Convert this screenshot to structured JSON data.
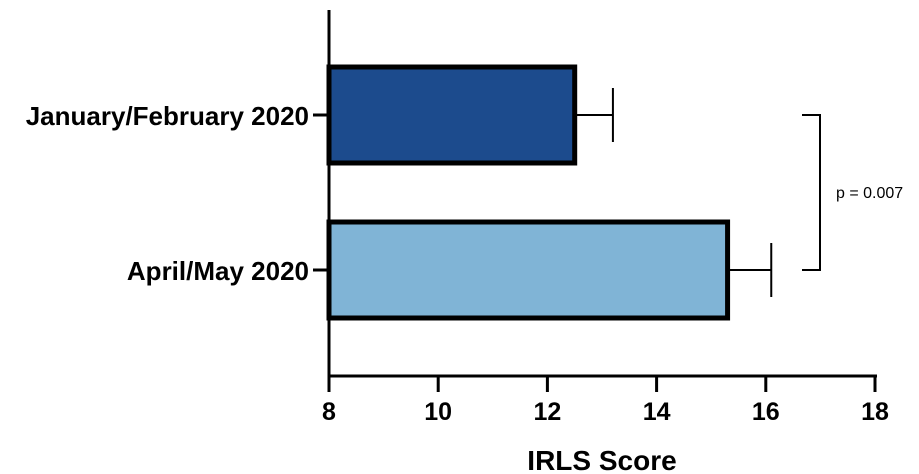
{
  "chart_data": {
    "type": "bar",
    "orientation": "horizontal",
    "categories": [
      "January/February 2020",
      "April/May 2020"
    ],
    "values": [
      12.5,
      15.3
    ],
    "error_upper": [
      13.2,
      16.1
    ],
    "colors": [
      "#1c4b8d",
      "#80b4d6"
    ],
    "xlabel": "IRLS Score",
    "xlim": [
      8,
      18
    ],
    "xticks": [
      8,
      10,
      12,
      14,
      16,
      18
    ],
    "tick_labels": [
      "8",
      "10",
      "12",
      "14",
      "16",
      "18"
    ],
    "grid": false,
    "annotation": "p = 0.007"
  }
}
